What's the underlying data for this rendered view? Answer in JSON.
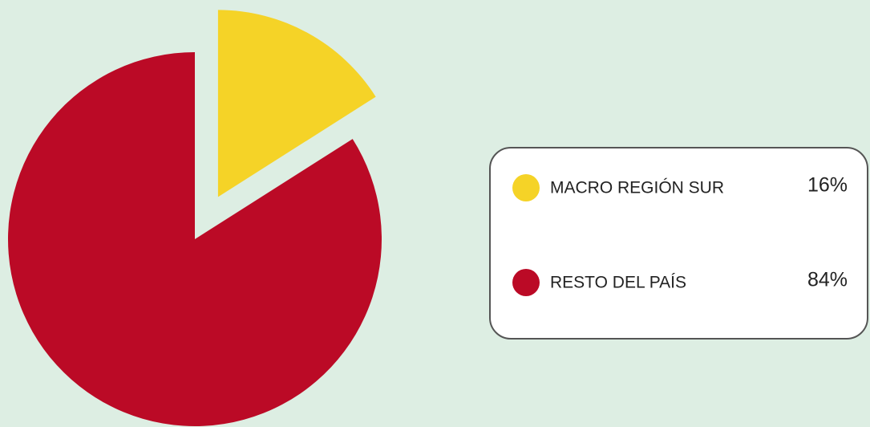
{
  "chart_data": {
    "type": "pie",
    "categories": [
      "MACRO REGIÓN SUR",
      "RESTO DEL PAÍS"
    ],
    "values": [
      16,
      84
    ],
    "value_labels": [
      "16%",
      "84%"
    ],
    "colors": [
      "#f5d327",
      "#bb0a26"
    ]
  }
}
